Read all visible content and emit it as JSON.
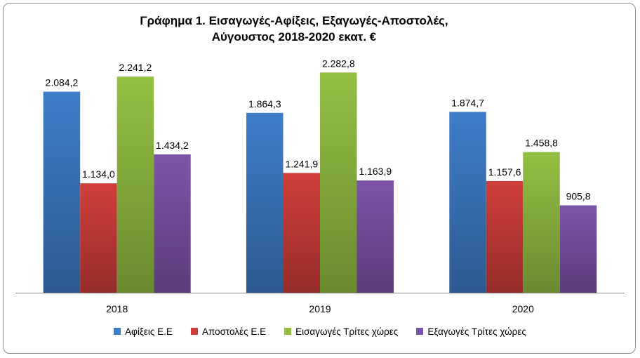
{
  "chart_data": {
    "type": "bar",
    "title": "Γράφημα 1. Εισαγωγές-Αφίξεις, Εξαγωγές-Αποστολές,",
    "subtitle": "Αύγουστος 2018-2020 εκατ. €",
    "categories": [
      "2018",
      "2019",
      "2020"
    ],
    "series": [
      {
        "name": "Αφίξεις Ε.Ε",
        "color": "#3f7dc9",
        "values": [
          2084.2,
          1864.3,
          1874.7
        ],
        "labels": [
          "2.084,2",
          "1.864,3",
          "1.874,7"
        ]
      },
      {
        "name": "Αποστολές  Ε.Ε",
        "color": "#d13f3b",
        "values": [
          1134.0,
          1241.9,
          1157.6
        ],
        "labels": [
          "1.134,0",
          "1.241,9",
          "1.157,6"
        ]
      },
      {
        "name": "Εισαγωγές Τρίτες χώρες",
        "color": "#93c043",
        "values": [
          2241.2,
          2282.8,
          1458.8
        ],
        "labels": [
          "2.241,2",
          "2.282,8",
          "1.458,8"
        ]
      },
      {
        "name": "Εξαγωγές Τρίτες χώρες",
        "color": "#7d55a8",
        "values": [
          1434.2,
          1163.9,
          905.8
        ],
        "labels": [
          "1.434,2",
          "1.163,9",
          "905,8"
        ]
      }
    ],
    "ylim": [
      0,
      2500
    ],
    "grid": false,
    "legend": "bottom"
  }
}
